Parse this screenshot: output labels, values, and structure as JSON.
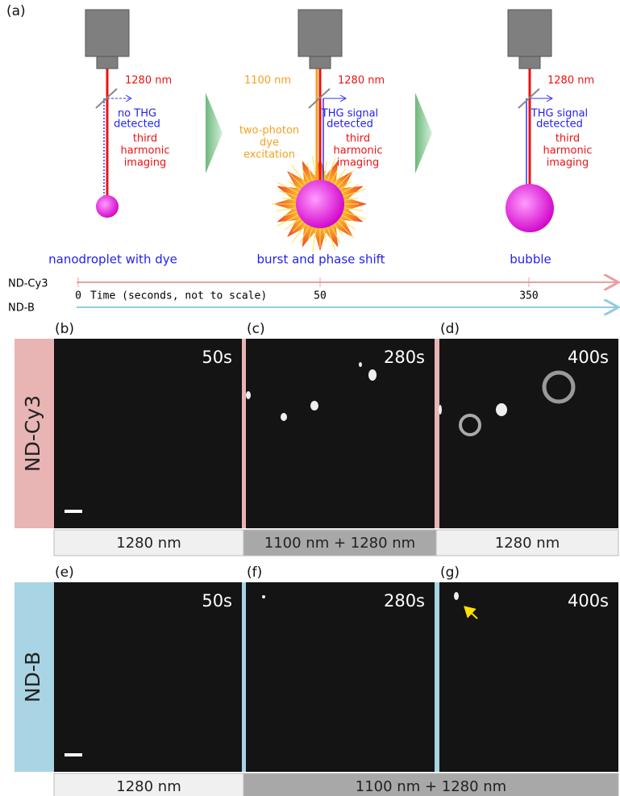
{
  "schematic": {
    "label": "(a)",
    "stages": [
      {
        "caption": "nanodroplet with dye",
        "wavelength": "1280 nm",
        "detection": [
          "no THG",
          "detected"
        ],
        "method": [
          "third",
          "harmonic",
          "imaging"
        ]
      },
      {
        "caption": "burst and phase shift",
        "pump": "1100 nm",
        "pump_effect": [
          "two-photon",
          "dye",
          "excitation"
        ],
        "wavelength": "1280 nm",
        "detection": [
          "THG signal",
          "detected"
        ],
        "method": [
          "third",
          "harmonic",
          "imaging"
        ]
      },
      {
        "caption": "bubble",
        "wavelength": "1280 nm",
        "detection": [
          "THG signal",
          "detected"
        ],
        "method": [
          "third",
          "harmonic",
          "imaging"
        ]
      }
    ]
  },
  "timeline": {
    "rows": [
      "ND-Cy3",
      "ND-B"
    ],
    "axis_label": "Time (seconds, not to scale)",
    "ticks": [
      0,
      50,
      350
    ]
  },
  "panels": [
    {
      "row": "ND-Cy3",
      "images": [
        {
          "label": "(b)",
          "time": "50s"
        },
        {
          "label": "(c)",
          "time": "280s"
        },
        {
          "label": "(d)",
          "time": "400s"
        }
      ],
      "illumination": [
        "1280 nm",
        "1100 nm + 1280 nm",
        "1280 nm"
      ]
    },
    {
      "row": "ND-B",
      "images": [
        {
          "label": "(e)",
          "time": "50s"
        },
        {
          "label": "(f)",
          "time": "280s"
        },
        {
          "label": "(g)",
          "time": "400s"
        }
      ],
      "illumination": [
        "1280 nm",
        "1100 nm + 1280 nm"
      ]
    }
  ]
}
